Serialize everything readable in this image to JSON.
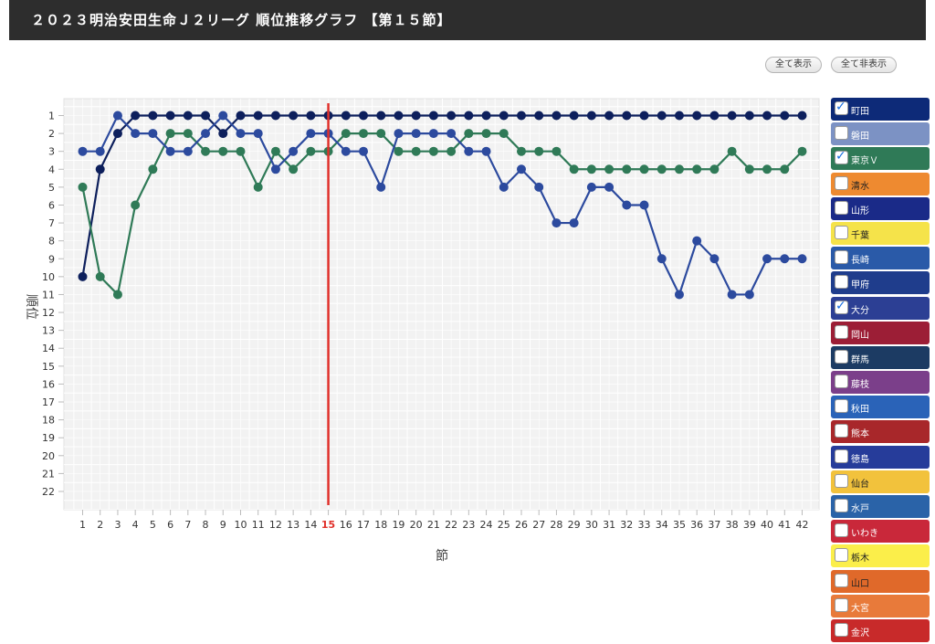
{
  "title": "２０２３明治安田生命Ｊ２リーグ 順位推移グラフ 【第１５節】",
  "buttons": {
    "show_all": "全て表示",
    "hide_all": "全て非表示"
  },
  "chart_data": {
    "type": "line",
    "xlabel": "節",
    "ylabel": "順位",
    "x": [
      1,
      2,
      3,
      4,
      5,
      6,
      7,
      8,
      9,
      10,
      11,
      12,
      13,
      14,
      15,
      16,
      17,
      18,
      19,
      20,
      21,
      22,
      23,
      24,
      25,
      26,
      27,
      28,
      29,
      30,
      31,
      32,
      33,
      34,
      35,
      36,
      37,
      38,
      39,
      40,
      41,
      42
    ],
    "ylim": [
      1,
      22
    ],
    "y_inverted": true,
    "grid": true,
    "current_round": 15,
    "current_round_color": "#e0302a",
    "series": [
      {
        "name": "町田",
        "color": "#0d1f5c",
        "values": [
          10,
          4,
          2,
          1,
          1,
          1,
          1,
          1,
          2,
          1,
          1,
          1,
          1,
          1,
          1,
          1,
          1,
          1,
          1,
          1,
          1,
          1,
          1,
          1,
          1,
          1,
          1,
          1,
          1,
          1,
          1,
          1,
          1,
          1,
          1,
          1,
          1,
          1,
          1,
          1,
          1,
          1
        ]
      },
      {
        "name": "東京Ｖ",
        "color": "#2f7a57",
        "values": [
          5,
          10,
          11,
          6,
          4,
          2,
          2,
          3,
          3,
          3,
          5,
          3,
          4,
          3,
          3,
          2,
          2,
          2,
          3,
          3,
          3,
          3,
          2,
          2,
          2,
          3,
          3,
          3,
          4,
          4,
          4,
          4,
          4,
          4,
          4,
          4,
          4,
          3,
          4,
          4,
          4,
          3
        ]
      },
      {
        "name": "大分",
        "color": "#2c4a9e",
        "values": [
          3,
          3,
          1,
          2,
          2,
          3,
          3,
          2,
          1,
          2,
          2,
          4,
          3,
          2,
          2,
          3,
          3,
          5,
          2,
          2,
          2,
          2,
          3,
          3,
          5,
          4,
          5,
          7,
          7,
          5,
          5,
          6,
          6,
          9,
          11,
          8,
          9,
          11,
          11,
          9,
          9,
          9
        ]
      }
    ]
  },
  "legend": [
    {
      "label": "町田",
      "color": "#0d2a78",
      "text": "#ffffff",
      "checked": true
    },
    {
      "label": "磐田",
      "color": "#7c92c4",
      "text": "#ffffff",
      "checked": false
    },
    {
      "label": "東京Ｖ",
      "color": "#2f7a57",
      "text": "#ffffff",
      "checked": true
    },
    {
      "label": "清水",
      "color": "#ee8a30",
      "text": "#222222",
      "checked": false
    },
    {
      "label": "山形",
      "color": "#1a2a88",
      "text": "#ffffff",
      "checked": false
    },
    {
      "label": "千葉",
      "color": "#f5e34a",
      "text": "#222222",
      "checked": false
    },
    {
      "label": "長崎",
      "color": "#2a5aa8",
      "text": "#ffffff",
      "checked": false
    },
    {
      "label": "甲府",
      "color": "#1f3d8c",
      "text": "#ffffff",
      "checked": false
    },
    {
      "label": "大分",
      "color": "#2c3f94",
      "text": "#ffffff",
      "checked": true
    },
    {
      "label": "岡山",
      "color": "#9c1e36",
      "text": "#ffffff",
      "checked": false
    },
    {
      "label": "群馬",
      "color": "#1c3b63",
      "text": "#ffffff",
      "checked": false
    },
    {
      "label": "藤枝",
      "color": "#7b3f8a",
      "text": "#ffffff",
      "checked": false
    },
    {
      "label": "秋田",
      "color": "#2a63b8",
      "text": "#ffffff",
      "checked": false
    },
    {
      "label": "熊本",
      "color": "#a8272a",
      "text": "#ffffff",
      "checked": false
    },
    {
      "label": "徳島",
      "color": "#263c9a",
      "text": "#ffffff",
      "checked": false
    },
    {
      "label": "仙台",
      "color": "#f2c23c",
      "text": "#222222",
      "checked": false
    },
    {
      "label": "水戸",
      "color": "#2a63a8",
      "text": "#ffffff",
      "checked": false
    },
    {
      "label": "いわき",
      "color": "#c9283a",
      "text": "#ffffff",
      "checked": false
    },
    {
      "label": "栃木",
      "color": "#fbee4a",
      "text": "#222222",
      "checked": false
    },
    {
      "label": "山口",
      "color": "#e0692a",
      "text": "#222222",
      "checked": false
    },
    {
      "label": "大宮",
      "color": "#e87a3a",
      "text": "#ffffff",
      "checked": false
    },
    {
      "label": "金沢",
      "color": "#c82a2a",
      "text": "#ffffff",
      "checked": false
    }
  ]
}
